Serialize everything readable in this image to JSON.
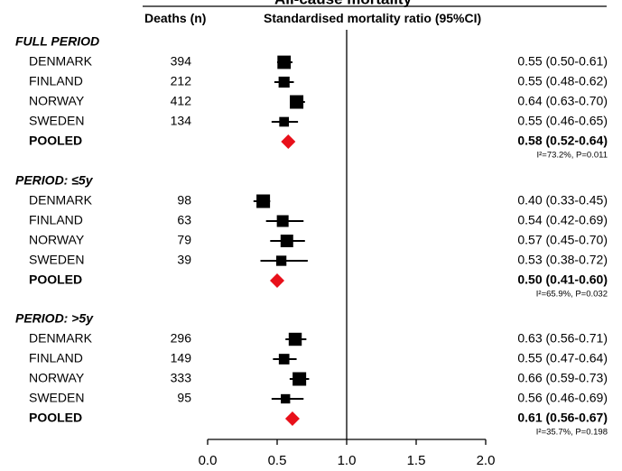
{
  "chart_data": {
    "type": "forest",
    "title": "All-cause mortality",
    "col_deaths_header": "Deaths (n)",
    "col_smr_header": "Standardised mortality ratio (95%CI)",
    "xlim": [
      0.0,
      2.0
    ],
    "x_ticks": [
      "0.0",
      "0.5",
      "1.0",
      "1.5",
      "2.0"
    ],
    "reference_line": 1.0,
    "colors": {
      "study": "#000000",
      "pooled": "#e8101a",
      "ci_line": "#000000"
    },
    "groups": [
      {
        "label": "FULL PERIOD",
        "studies": [
          {
            "name": "DENMARK",
            "deaths": "394",
            "smr": 0.55,
            "lo": 0.5,
            "hi": 0.61,
            "label": "0.55 (0.50-0.61)"
          },
          {
            "name": "FINLAND",
            "deaths": "212",
            "smr": 0.55,
            "lo": 0.48,
            "hi": 0.62,
            "label": "0.55 (0.48-0.62)"
          },
          {
            "name": "NORWAY",
            "deaths": "412",
            "smr": 0.64,
            "lo": 0.63,
            "hi": 0.7,
            "label": "0.64 (0.63-0.70)"
          },
          {
            "name": "SWEDEN",
            "deaths": "134",
            "smr": 0.55,
            "lo": 0.46,
            "hi": 0.65,
            "label": "0.55 (0.46-0.65)"
          }
        ],
        "pooled": {
          "name": "POOLED",
          "smr": 0.58,
          "lo": 0.52,
          "hi": 0.64,
          "label": "0.58 (0.52-0.64)"
        },
        "heterogeneity": "I²=73.2%, P=0.011"
      },
      {
        "label": "PERIOD: ≤5y",
        "studies": [
          {
            "name": "DENMARK",
            "deaths": "98",
            "smr": 0.4,
            "lo": 0.33,
            "hi": 0.45,
            "label": "0.40 (0.33-0.45)"
          },
          {
            "name": "FINLAND",
            "deaths": "63",
            "smr": 0.54,
            "lo": 0.42,
            "hi": 0.69,
            "label": "0.54 (0.42-0.69)"
          },
          {
            "name": "NORWAY",
            "deaths": "79",
            "smr": 0.57,
            "lo": 0.45,
            "hi": 0.7,
            "label": "0.57 (0.45-0.70)"
          },
          {
            "name": "SWEDEN",
            "deaths": "39",
            "smr": 0.53,
            "lo": 0.38,
            "hi": 0.72,
            "label": "0.53 (0.38-0.72)"
          }
        ],
        "pooled": {
          "name": "POOLED",
          "smr": 0.5,
          "lo": 0.41,
          "hi": 0.6,
          "label": "0.50 (0.41-0.60)"
        },
        "heterogeneity": "I²=65.9%, P=0.032"
      },
      {
        "label": "PERIOD: >5y",
        "studies": [
          {
            "name": "DENMARK",
            "deaths": "296",
            "smr": 0.63,
            "lo": 0.56,
            "hi": 0.71,
            "label": "0.63 (0.56-0.71)"
          },
          {
            "name": "FINLAND",
            "deaths": "149",
            "smr": 0.55,
            "lo": 0.47,
            "hi": 0.64,
            "label": "0.55 (0.47-0.64)"
          },
          {
            "name": "NORWAY",
            "deaths": "333",
            "smr": 0.66,
            "lo": 0.59,
            "hi": 0.73,
            "label": "0.66 (0.59-0.73)"
          },
          {
            "name": "SWEDEN",
            "deaths": "95",
            "smr": 0.56,
            "lo": 0.46,
            "hi": 0.69,
            "label": "0.56 (0.46-0.69)"
          }
        ],
        "pooled": {
          "name": "POOLED",
          "smr": 0.61,
          "lo": 0.56,
          "hi": 0.67,
          "label": "0.61 (0.56-0.67)"
        },
        "heterogeneity": "I²=35.7%, P=0.198"
      }
    ]
  }
}
